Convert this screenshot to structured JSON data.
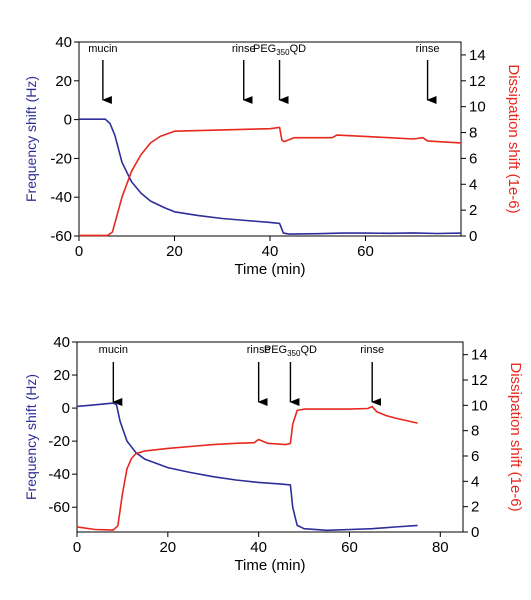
{
  "chart_data": [
    {
      "type": "line",
      "xlabel": "Time (min)",
      "ylabel": "Frequency shift (Hz)",
      "y2label": "Dissipation shift (1e-6)",
      "xlim": [
        0,
        80
      ],
      "ylim": [
        -60,
        40
      ],
      "y2lim": [
        0,
        15
      ],
      "xticks": [
        0,
        20,
        40,
        60
      ],
      "yticks": [
        -60,
        -40,
        -20,
        0,
        20,
        40
      ],
      "y2ticks": [
        0,
        2,
        4,
        6,
        8,
        10,
        12,
        14
      ],
      "colors": {
        "frequency": "#2e2e9a",
        "dissipation": "#e8281e"
      },
      "series": [
        {
          "key": "frequency",
          "axis": "left",
          "x": [
            0,
            5.5,
            6.5,
            7.5,
            9,
            11,
            13,
            15,
            18,
            20,
            25,
            30,
            35,
            40,
            42,
            42.8,
            44,
            50,
            55,
            60,
            65,
            70,
            75,
            80
          ],
          "y": [
            0.2,
            0.2,
            -2,
            -8,
            -22,
            -32,
            -38,
            -42,
            -45.5,
            -47.5,
            -49.5,
            -51,
            -52,
            -53,
            -53.5,
            -58.5,
            -59,
            -58.8,
            -58.5,
            -58.5,
            -58.6,
            -58.4,
            -58.7,
            -58.5
          ]
        },
        {
          "key": "dissipation",
          "axis": "right",
          "x": [
            0,
            6,
            7,
            9,
            11,
            13,
            15,
            17,
            20,
            25,
            30,
            35,
            40,
            42,
            42.5,
            43,
            45,
            50,
            53,
            54,
            60,
            65,
            70,
            72,
            73,
            75,
            80
          ],
          "y": [
            0.05,
            0.05,
            0.3,
            3,
            5,
            6.3,
            7.2,
            7.7,
            8.1,
            8.15,
            8.2,
            8.25,
            8.3,
            8.4,
            7.4,
            7.3,
            7.6,
            7.6,
            7.6,
            7.8,
            7.7,
            7.6,
            7.5,
            7.6,
            7.35,
            7.3,
            7.2
          ]
        }
      ],
      "annotations": [
        {
          "text": "mucin",
          "x": 5
        },
        {
          "text": "rinse",
          "x": 34.5
        },
        {
          "text": "PEG",
          "sub": "350",
          "after": "QD",
          "x": 42
        },
        {
          "text": "rinse",
          "x": 73
        }
      ]
    },
    {
      "type": "line",
      "xlabel": "Time (min)",
      "ylabel": "Frequency shift (Hz)",
      "y2label": "Dissipation shift (1e-6)",
      "xlim": [
        0,
        85
      ],
      "ylim": [
        -75,
        40
      ],
      "y2lim": [
        0,
        15
      ],
      "xticks": [
        0,
        20,
        40,
        60,
        80
      ],
      "yticks": [
        -60,
        -40,
        -20,
        0,
        20,
        40
      ],
      "y2ticks": [
        0,
        2,
        4,
        6,
        8,
        10,
        12,
        14
      ],
      "colors": {
        "frequency": "#2e2e9a",
        "dissipation": "#e8281e"
      },
      "series": [
        {
          "key": "frequency",
          "axis": "left",
          "x": [
            0,
            4,
            8,
            8.7,
            9.5,
            11,
            13,
            15,
            18,
            20,
            25,
            30,
            35,
            40,
            45,
            47,
            47.5,
            48.5,
            50,
            55,
            60,
            65,
            70,
            75
          ],
          "y": [
            1,
            2,
            3,
            2,
            -8,
            -20,
            -27,
            -31,
            -34,
            -36,
            -39,
            -41.5,
            -43.5,
            -45,
            -46,
            -46.5,
            -60,
            -71,
            -73,
            -74,
            -73.5,
            -73,
            -72,
            -71
          ]
        },
        {
          "key": "dissipation",
          "axis": "right",
          "x": [
            0,
            4,
            8,
            9,
            10,
            11,
            12,
            13,
            15,
            20,
            25,
            30,
            35,
            39,
            40,
            42,
            46,
            47,
            47.5,
            48.5,
            50,
            55,
            60,
            64,
            65,
            66,
            68,
            70,
            75
          ],
          "y": [
            0.4,
            0.2,
            0.15,
            0.5,
            3,
            5,
            5.8,
            6.2,
            6.4,
            6.6,
            6.75,
            6.9,
            7.0,
            7.05,
            7.3,
            7.0,
            6.9,
            7.0,
            8.5,
            9.6,
            9.7,
            9.7,
            9.7,
            9.75,
            9.9,
            9.5,
            9.2,
            9.0,
            8.6
          ]
        }
      ],
      "annotations": [
        {
          "text": "mucin",
          "x": 8
        },
        {
          "text": "rinse",
          "x": 40
        },
        {
          "text": "PEG",
          "sub": "350",
          "after": "QD",
          "x": 47
        },
        {
          "text": "rinse",
          "x": 65
        }
      ]
    }
  ]
}
